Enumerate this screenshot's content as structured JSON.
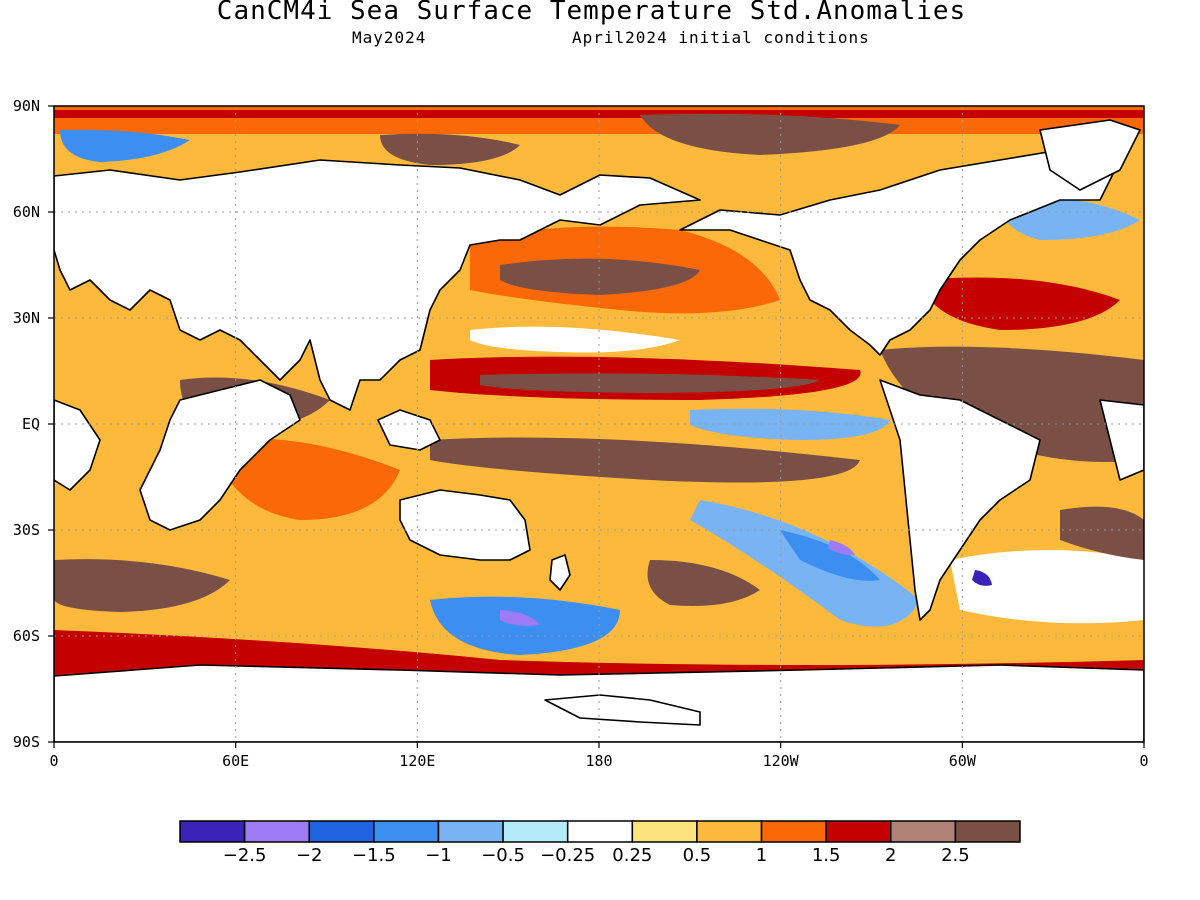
{
  "title": "CanCM4i Sea Surface Temperature Std.Anomalies",
  "subtitle_left": "May2024",
  "subtitle_right": "April2024 initial conditions",
  "map": {
    "lat_labels": [
      "90N",
      "60N",
      "30N",
      "EQ",
      "30S",
      "60S",
      "90S"
    ],
    "lat_values": [
      90,
      60,
      30,
      0,
      -30,
      -60,
      -90
    ],
    "lon_labels": [
      "0",
      "60E",
      "120E",
      "180",
      "120W",
      "60W",
      "0"
    ],
    "lon_values": [
      0,
      60,
      120,
      180,
      240,
      300,
      360
    ]
  },
  "colorbar": {
    "colors": [
      "#3b22b8",
      "#9d7bf4",
      "#1f63e0",
      "#3c8ff0",
      "#78b4f4",
      "#b3ecf8",
      "#ffffff",
      "#fde37c",
      "#fdb93c",
      "#fb6808",
      "#c40000",
      "#b18278",
      "#7a5046"
    ],
    "labels": [
      "−2.5",
      "−2",
      "−1.5",
      "−1",
      "−0.5",
      "−0.25",
      "0.25",
      "0.5",
      "1",
      "1.5",
      "2",
      "2.5"
    ],
    "values": [
      -2.5,
      -2,
      -1.5,
      -1,
      -0.5,
      -0.25,
      0.25,
      0.5,
      1,
      1.5,
      2,
      2.5
    ]
  }
}
